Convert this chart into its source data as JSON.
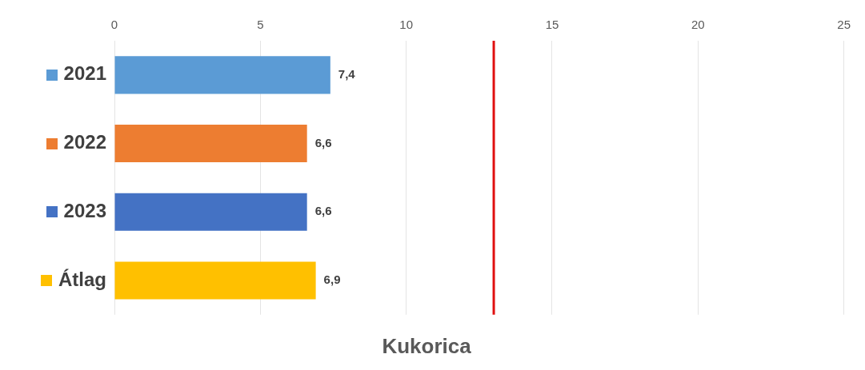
{
  "chart_data": {
    "type": "bar",
    "orientation": "horizontal",
    "title": "Kukorica",
    "categories": [
      "2021",
      "2022",
      "2023",
      "Átlag"
    ],
    "values": [
      7.4,
      6.6,
      6.6,
      6.9
    ],
    "colors": [
      "#5b9bd5",
      "#ed7d31",
      "#4472c4",
      "#ffc000"
    ],
    "value_labels": [
      "7,4",
      "6,6",
      "6,6",
      "6,9"
    ],
    "xlim": [
      0,
      25
    ],
    "xticks": [
      0,
      5,
      10,
      15,
      20,
      25
    ],
    "grid": "x",
    "ref_lines": [
      {
        "axis": "x",
        "value": 13,
        "color": "#e01010"
      }
    ]
  }
}
